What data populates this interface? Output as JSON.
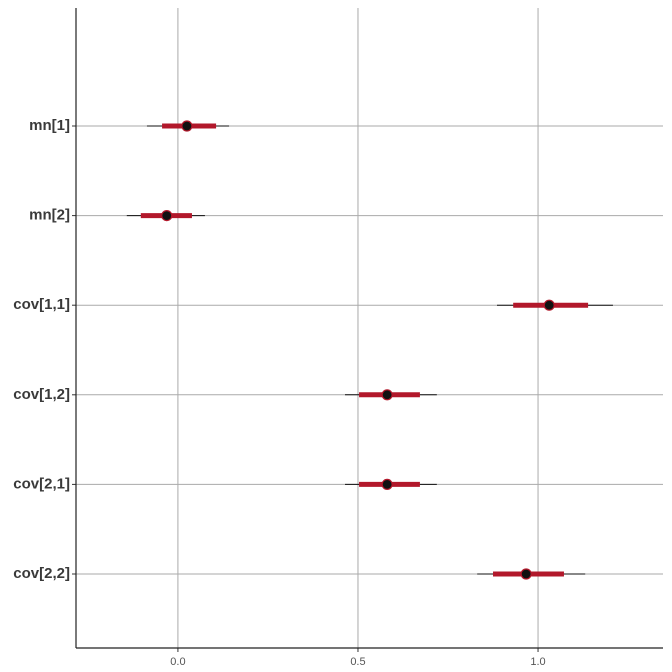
{
  "chart_data": {
    "type": "interval",
    "categories": [
      "mn[1]",
      "mn[2]",
      "cov[1,1]",
      "cov[1,2]",
      "cov[2,1]",
      "cov[2,2]"
    ],
    "values": [
      0.025,
      -0.031,
      1.031,
      0.581,
      0.581,
      0.967
    ],
    "inner_lower": [
      -0.044,
      -0.103,
      0.931,
      0.503,
      0.503,
      0.875
    ],
    "inner_upper": [
      0.106,
      0.039,
      1.139,
      0.672,
      0.672,
      1.072
    ],
    "outer_lower": [
      -0.086,
      -0.142,
      0.886,
      0.464,
      0.464,
      0.831
    ],
    "outer_upper": [
      0.142,
      0.075,
      1.208,
      0.719,
      0.719,
      1.131
    ],
    "color": "#b2182b",
    "xlim": [
      -0.283,
      1.347
    ],
    "xticks": [
      {
        "value": 0,
        "label": "0.0"
      },
      0.5,
      {
        "value": 1,
        "label": "1.0"
      }
    ],
    "grid": true
  }
}
